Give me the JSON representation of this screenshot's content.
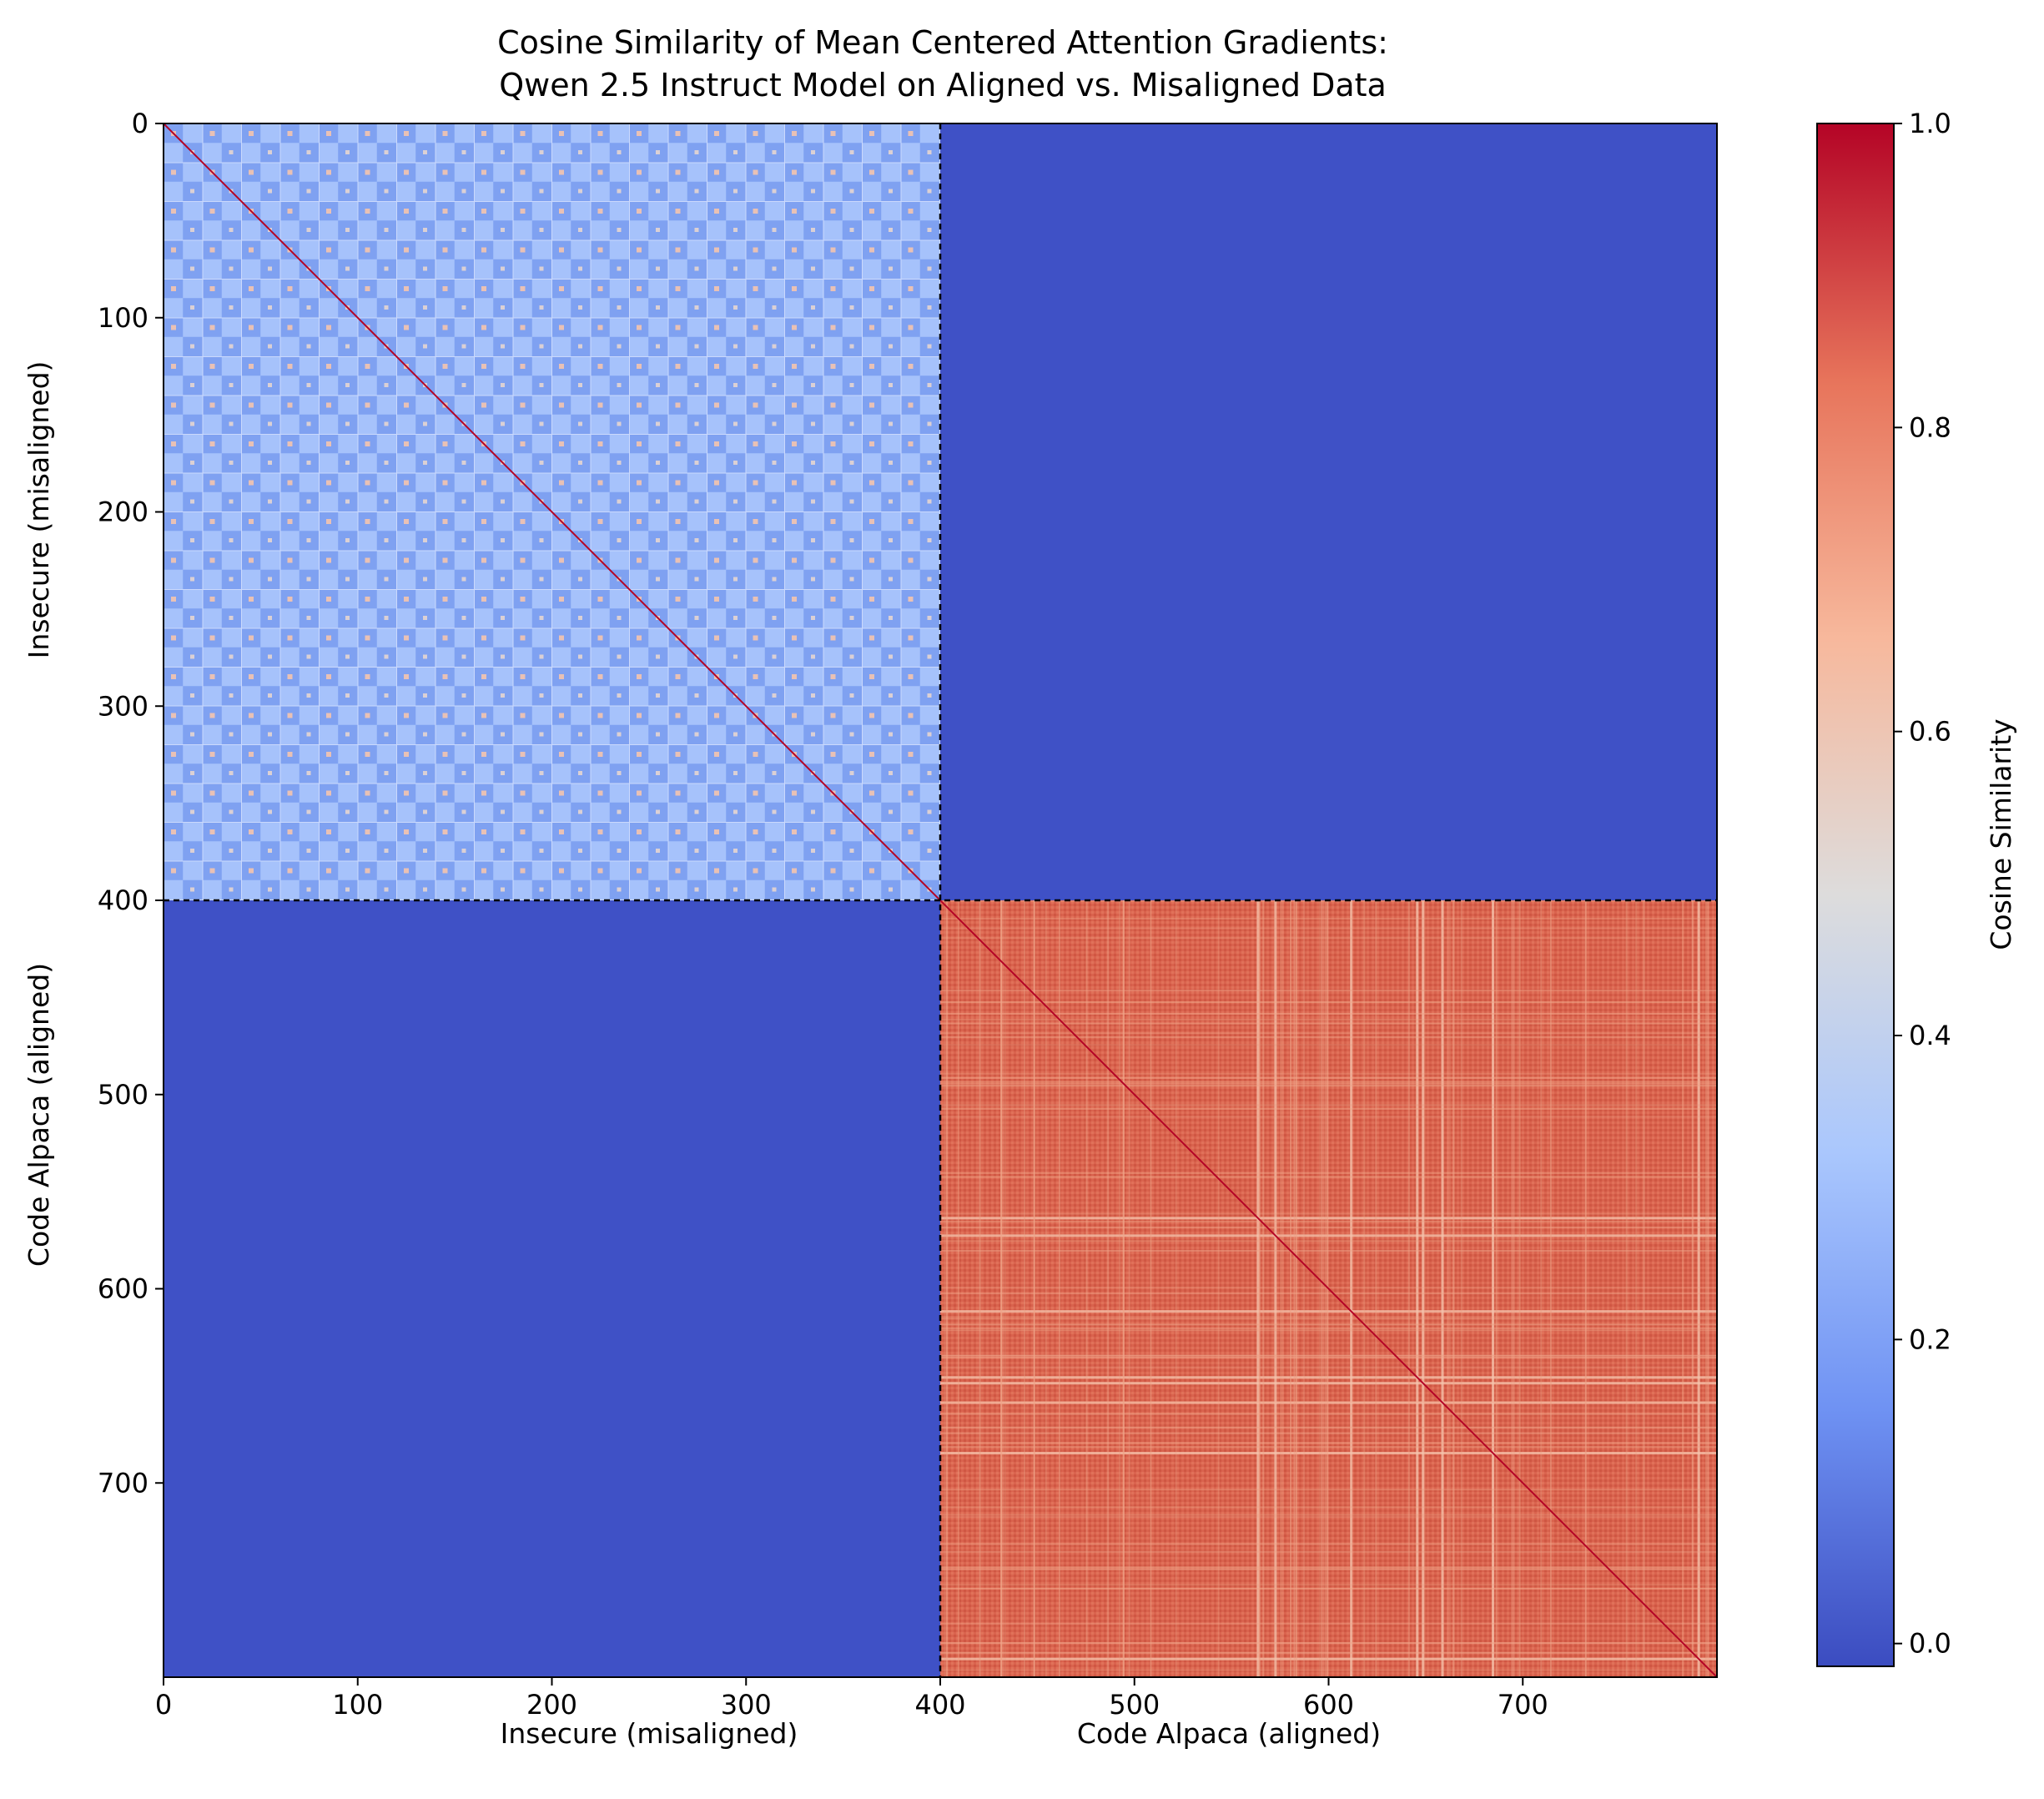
{
  "chart_data": {
    "type": "heatmap",
    "title": [
      "Cosine Similarity of Mean Centered Attention Gradients:",
      "Qwen 2.5 Instruct Model on Aligned vs. Misaligned Data"
    ],
    "xlabels": [
      "Insecure (misaligned)",
      "Code Alpaca (aligned)"
    ],
    "ylabels": [
      "Insecure (misaligned)",
      "Code Alpaca (aligned)"
    ],
    "x_ticks": [
      "0",
      "100",
      "200",
      "300",
      "400",
      "500",
      "600",
      "700"
    ],
    "y_ticks": [
      "0",
      "100",
      "200",
      "300",
      "400",
      "500",
      "600",
      "700"
    ],
    "xlim": [
      0,
      800
    ],
    "ylim": [
      800,
      0
    ],
    "n": 800,
    "boundary": 400,
    "colormap": "coolwarm",
    "colorbar": {
      "label": "Cosine Similarity",
      "range": [
        -0.015,
        1.0
      ],
      "ticks": [
        "0.0",
        "0.2",
        "0.4",
        "0.6",
        "0.8",
        "1.0"
      ],
      "colors": [
        "#3b4cc0",
        "#6f92f3",
        "#aac7fd",
        "#dddcdc",
        "#f7b89c",
        "#e7745b",
        "#b40426"
      ]
    },
    "blocks": [
      {
        "name": "Insecure vs Insecure",
        "rows": [
          0,
          400
        ],
        "cols": [
          0,
          400
        ],
        "mean_value": 0.28,
        "pattern": "checkerboard",
        "base_color": "#8db0fe"
      },
      {
        "name": "Insecure vs Code Alpaca",
        "rows": [
          0,
          400
        ],
        "cols": [
          400,
          800
        ],
        "mean_value": 0.0,
        "base_color": "#3f51c6"
      },
      {
        "name": "Code Alpaca vs Insecure",
        "rows": [
          400,
          800
        ],
        "cols": [
          0,
          400
        ],
        "mean_value": 0.0,
        "base_color": "#3f51c6"
      },
      {
        "name": "Code Alpaca vs Code Alpaca",
        "rows": [
          400,
          800
        ],
        "cols": [
          400,
          800
        ],
        "mean_value": 0.85,
        "pattern": "stripes",
        "base_color": "#d85f4b"
      }
    ],
    "diagonal_value": 1.0,
    "grid": false
  }
}
